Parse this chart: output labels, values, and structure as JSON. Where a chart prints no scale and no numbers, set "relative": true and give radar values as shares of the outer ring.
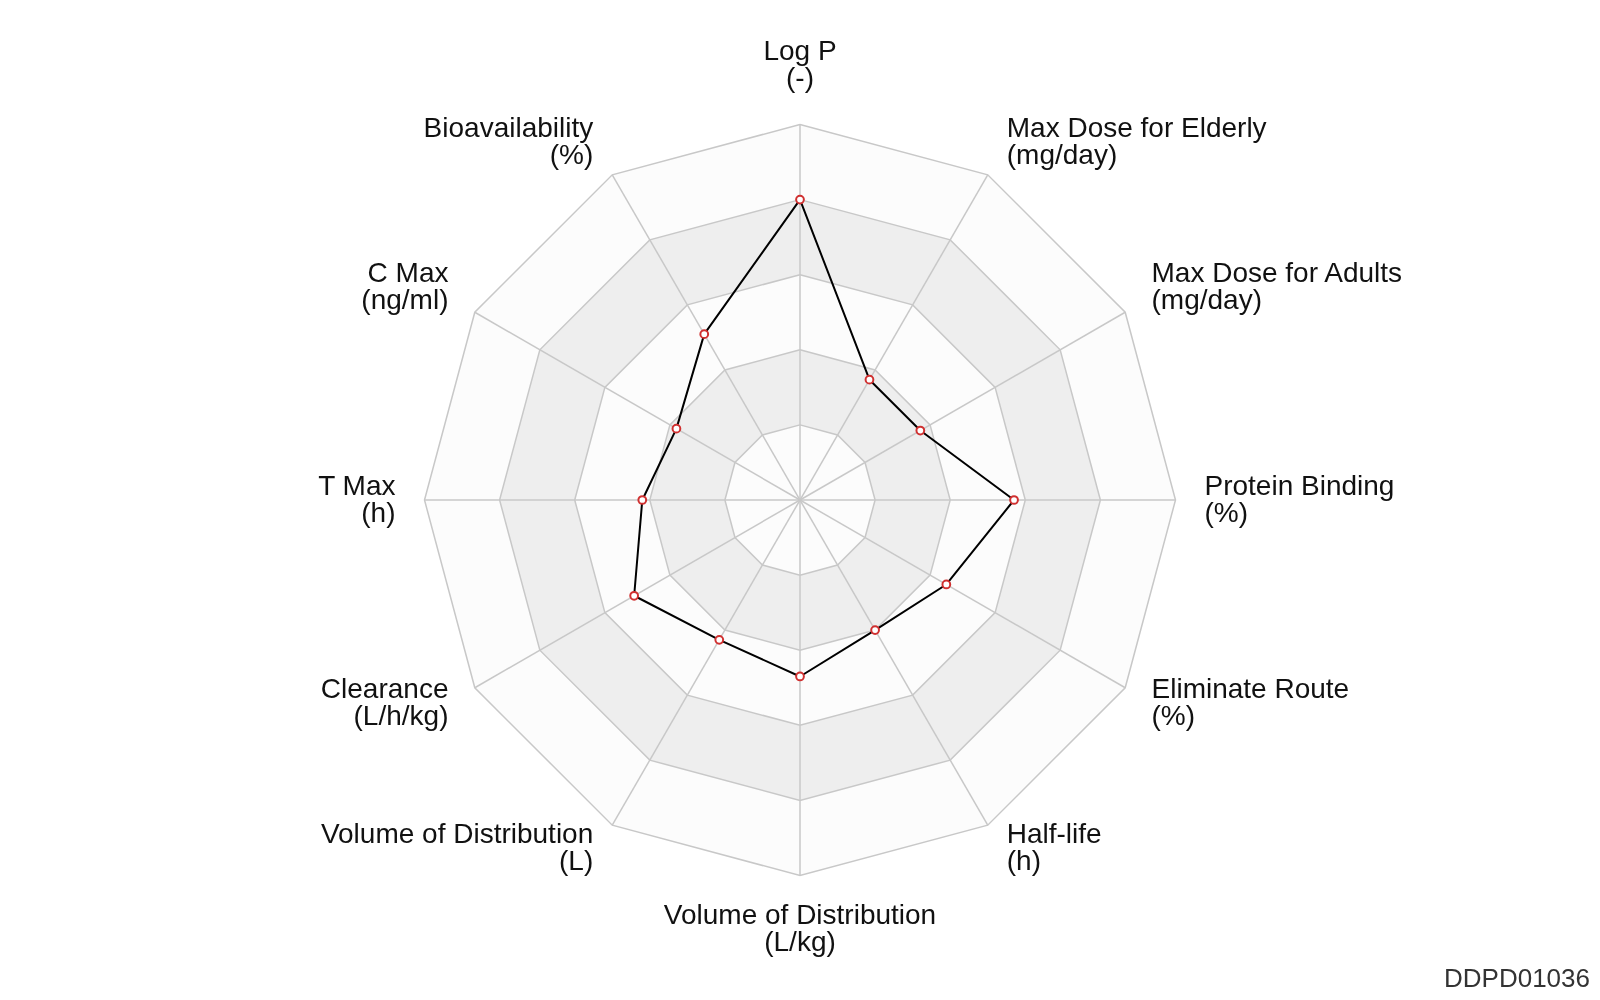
{
  "chart_data": {
    "type": "radar",
    "relative": true,
    "categories": [
      "Log P\n(-)",
      "Max Dose for Elderly\n(mg/day)",
      "Max Dose for Adults\n(mg/day)",
      "Protein Binding\n(%)",
      "Eliminate Route\n(%)",
      "Half-life\n(h)",
      "Volume of Distribution\n(L/kg)",
      "Volume of Distribution\n(L)",
      "Clearance\n(L/h/kg)",
      "T Max\n(h)",
      "C Max\n(ng/ml)",
      "Bioavailability\n(%)"
    ],
    "series": [
      {
        "color": "#000000",
        "values": [
          0.8,
          0.37,
          0.37,
          0.57,
          0.45,
          0.4,
          0.47,
          0.43,
          0.51,
          0.42,
          0.38,
          0.51
        ]
      }
    ],
    "marker": "circle",
    "grid": true,
    "annotations": [
      "DDPD01036"
    ]
  }
}
